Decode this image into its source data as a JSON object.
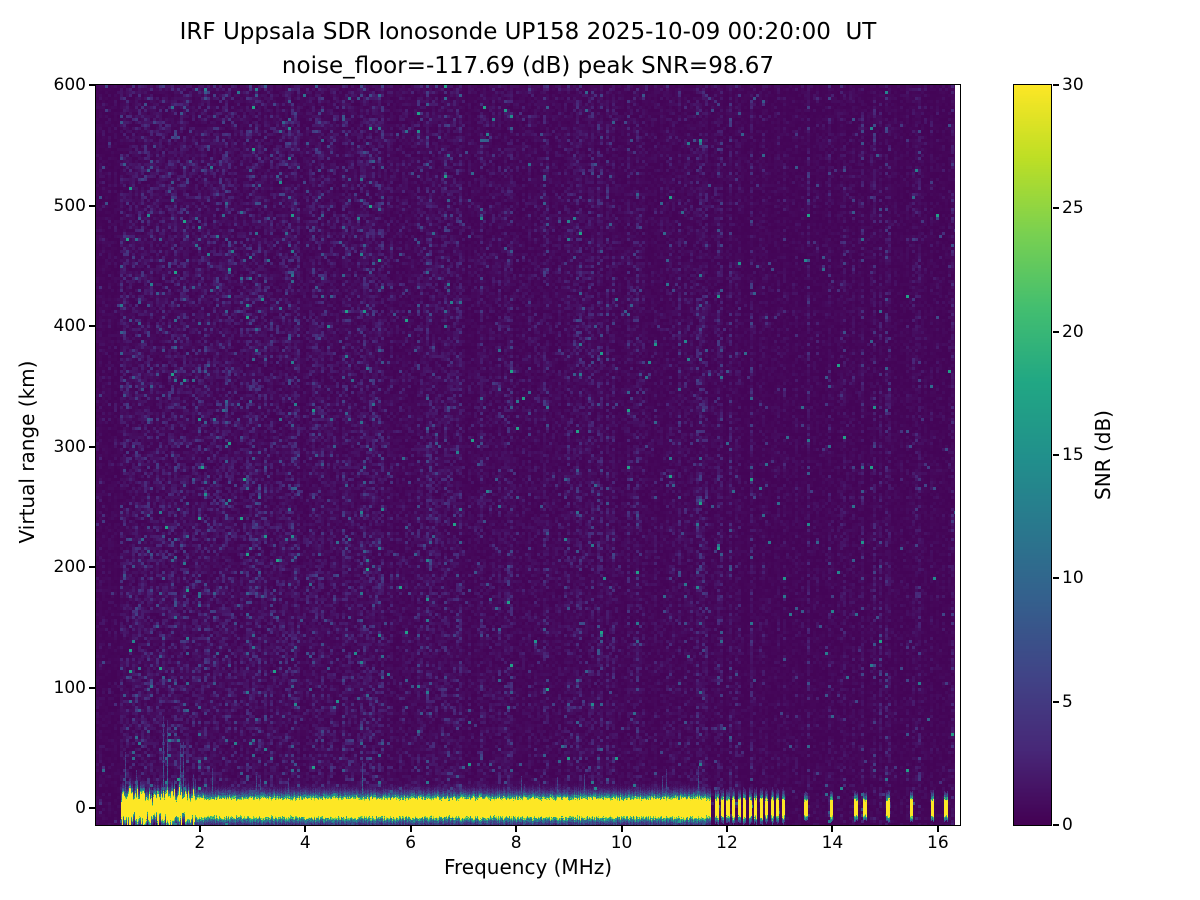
{
  "title": {
    "line1": "IRF Uppsala SDR Ionosonde UP158 2025-10-09 00:20:00  UT",
    "line2": "noise_floor=-117.69 (dB) peak SNR=98.67"
  },
  "axes": {
    "xlabel": "Frequency (MHz)",
    "ylabel": "Virtual range (km)",
    "x_ticks": [
      2,
      4,
      6,
      8,
      10,
      12,
      14,
      16
    ],
    "y_ticks": [
      0,
      100,
      200,
      300,
      400,
      500,
      600
    ],
    "xlim": [
      0.03,
      16.42
    ],
    "ylim": [
      -14,
      600
    ]
  },
  "colorbar": {
    "label": "SNR (dB)",
    "ticks": [
      0,
      5,
      10,
      15,
      20,
      25,
      30
    ],
    "min": 0,
    "max": 30,
    "colormap": "viridis"
  },
  "chart_data": {
    "type": "heatmap",
    "title": "IRF Uppsala SDR Ionosonde UP158 ionogram",
    "xlabel": "Frequency (MHz)",
    "ylabel": "Virtual range (km)",
    "xlim": [
      0.03,
      16.42
    ],
    "ylim": [
      -14,
      600
    ],
    "colormap": "viridis",
    "value_label": "SNR (dB)",
    "value_range": [
      0,
      30
    ],
    "noise_floor_db": -117.69,
    "peak_snr_db": 98.67,
    "background_color": "#440154",
    "peak_color": "#fde725",
    "viridis_anchors": [
      "#440154",
      "#482878",
      "#414487",
      "#355f8d",
      "#2a788e",
      "#21918c",
      "#22a884",
      "#44bf70",
      "#7ad151",
      "#bddf26",
      "#fde725"
    ],
    "features": {
      "ground_echo_band": {
        "center_km": 0,
        "half_width_km": 7,
        "freq_start_mhz": 0.5,
        "freq_end_mhz": 11.7,
        "peak_db": 30
      },
      "broken_bar_region": {
        "freq_start_mhz": 11.78,
        "freq_end_mhz": 13.12,
        "bar_step_mhz": 0.105,
        "bar_width_mhz": 0.06
      },
      "isolated_echo_freqs_mhz": [
        13.5,
        13.98,
        14.45,
        14.62,
        15.05,
        15.5,
        15.9,
        16.15
      ],
      "noise_streak_freqs_mhz": [
        [
          1.05,
          2.8
        ],
        [
          1.3,
          3.6
        ],
        [
          1.55,
          4.2
        ],
        [
          1.75,
          3.2
        ],
        [
          2.1,
          2.8
        ],
        [
          2.55,
          3.4
        ],
        [
          3.0,
          2.8
        ],
        [
          3.35,
          2.6
        ],
        [
          3.8,
          2.3
        ],
        [
          4.3,
          2.1
        ],
        [
          4.75,
          2.0
        ],
        [
          5.2,
          1.9
        ],
        [
          6.38,
          3.2
        ],
        [
          6.9,
          1.9
        ],
        [
          7.9,
          1.9
        ],
        [
          8.6,
          1.7
        ],
        [
          9.0,
          1.9
        ],
        [
          9.6,
          1.7
        ],
        [
          10.3,
          1.6
        ],
        [
          11.1,
          1.6
        ]
      ],
      "rf_stripe_region": {
        "freq_start_mhz": 11.6,
        "stripe_step_mhz": 0.212
      },
      "data_right_edge_mhz": 16.33
    },
    "render": {
      "seed": 1337,
      "speckle_base_probability": 0.016
    }
  }
}
